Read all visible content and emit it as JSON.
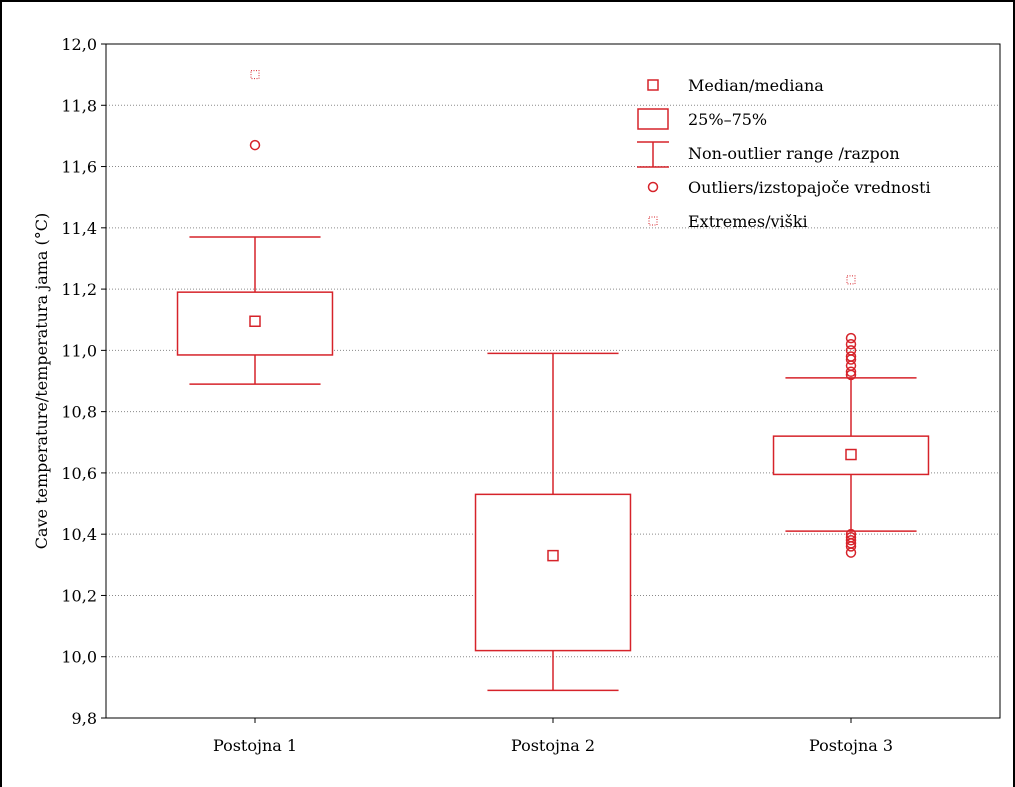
{
  "chart_data": {
    "type": "box",
    "title": "",
    "xlabel": "",
    "ylabel": "Cave temperature/temperatura jama  (°C)",
    "ylim": [
      9.8,
      12.0
    ],
    "yticks": [
      "12,0",
      "11,8",
      "11,6",
      "11,4",
      "11,2",
      "11,0",
      "10,8",
      "10,6",
      "10,4",
      "10,2",
      "10,0",
      "9,8"
    ],
    "grid": "horizontal dotted",
    "legend_position": "top-right",
    "color": "#d6232a",
    "categories": [
      "Postojna 1",
      "Postojna 2",
      "Postojna 3"
    ],
    "boxes": [
      {
        "name": "Postojna 1",
        "median": 11.095,
        "q1": 10.985,
        "q3": 11.19,
        "whisker_low": 10.89,
        "whisker_high": 11.37,
        "outliers": [
          11.67
        ],
        "extremes": [
          11.9
        ]
      },
      {
        "name": "Postojna 2",
        "median": 10.33,
        "q1": 10.02,
        "q3": 10.53,
        "whisker_low": 9.89,
        "whisker_high": 10.99,
        "outliers": [],
        "extremes": []
      },
      {
        "name": "Postojna 3",
        "median": 10.66,
        "q1": 10.595,
        "q3": 10.72,
        "whisker_low": 10.41,
        "whisker_high": 10.91,
        "outliers": [
          10.34,
          10.36,
          10.37,
          10.38,
          10.39,
          10.4,
          10.92,
          10.93,
          10.95,
          10.97,
          10.98,
          11.0,
          11.02,
          11.04
        ],
        "extremes": [
          11.23
        ]
      }
    ],
    "legend": [
      {
        "symbol": "median",
        "label": "Median/mediana"
      },
      {
        "symbol": "box",
        "label": "25%–75%"
      },
      {
        "symbol": "whisker",
        "label": "Non-outlier range /razpon"
      },
      {
        "symbol": "outlier",
        "label": "Outliers/izstopajoče vrednosti"
      },
      {
        "symbol": "extreme",
        "label": "Extremes/viški"
      }
    ]
  }
}
